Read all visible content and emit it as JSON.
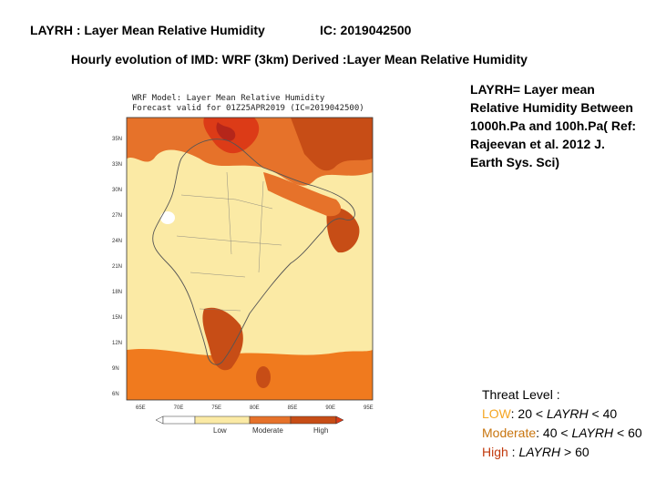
{
  "header": {
    "title": "LAYRH : Layer Mean Relative Humidity",
    "ic": "IC: 2019042500"
  },
  "subtitle": "Hourly evolution of IMD: WRF (3km) Derived :Layer Mean Relative Humidity",
  "description": "LAYRH= Layer mean Relative Humidity Between 1000h.Pa and 100h.Pa( Ref: Rajeevan et al. 2012 J. Earth Sys. Sci)",
  "threat": {
    "heading": "Threat Level :",
    "low": {
      "word": "LOW",
      "rest": ": 20 < ",
      "var": "LAYRH",
      "tail": " <  40",
      "color": "#f5a623"
    },
    "moderate": {
      "word": "Moderate",
      "rest": ": 40 < ",
      "var": "LAYRH",
      "tail": " < 60",
      "color": "#c8750f"
    },
    "high": {
      "word": "High",
      "rest": " : ",
      "var": "LAYRH",
      "tail": " > 60",
      "color": "#c23a0e"
    }
  },
  "map": {
    "title_line1": "WRF Model: Layer Mean Relative Humidity",
    "title_line2": "Forecast valid for 01Z25APR2019 (IC=2019042500)",
    "lat_labels": [
      "35N",
      "33N",
      "30N",
      "27N",
      "24N",
      "21N",
      "18N",
      "15N",
      "12N",
      "9N",
      "6N"
    ],
    "lon_labels": [
      "65E",
      "70E",
      "75E",
      "80E",
      "85E",
      "90E",
      "95E"
    ],
    "legend": {
      "low": "Low",
      "moderate": "Moderate",
      "high": "High"
    },
    "colors": {
      "low": "#fbeaa5",
      "moderate": "#e6722a",
      "high": "#c74d16",
      "very_high": "#dc3b17",
      "sea_high": "#f07a1e"
    }
  }
}
